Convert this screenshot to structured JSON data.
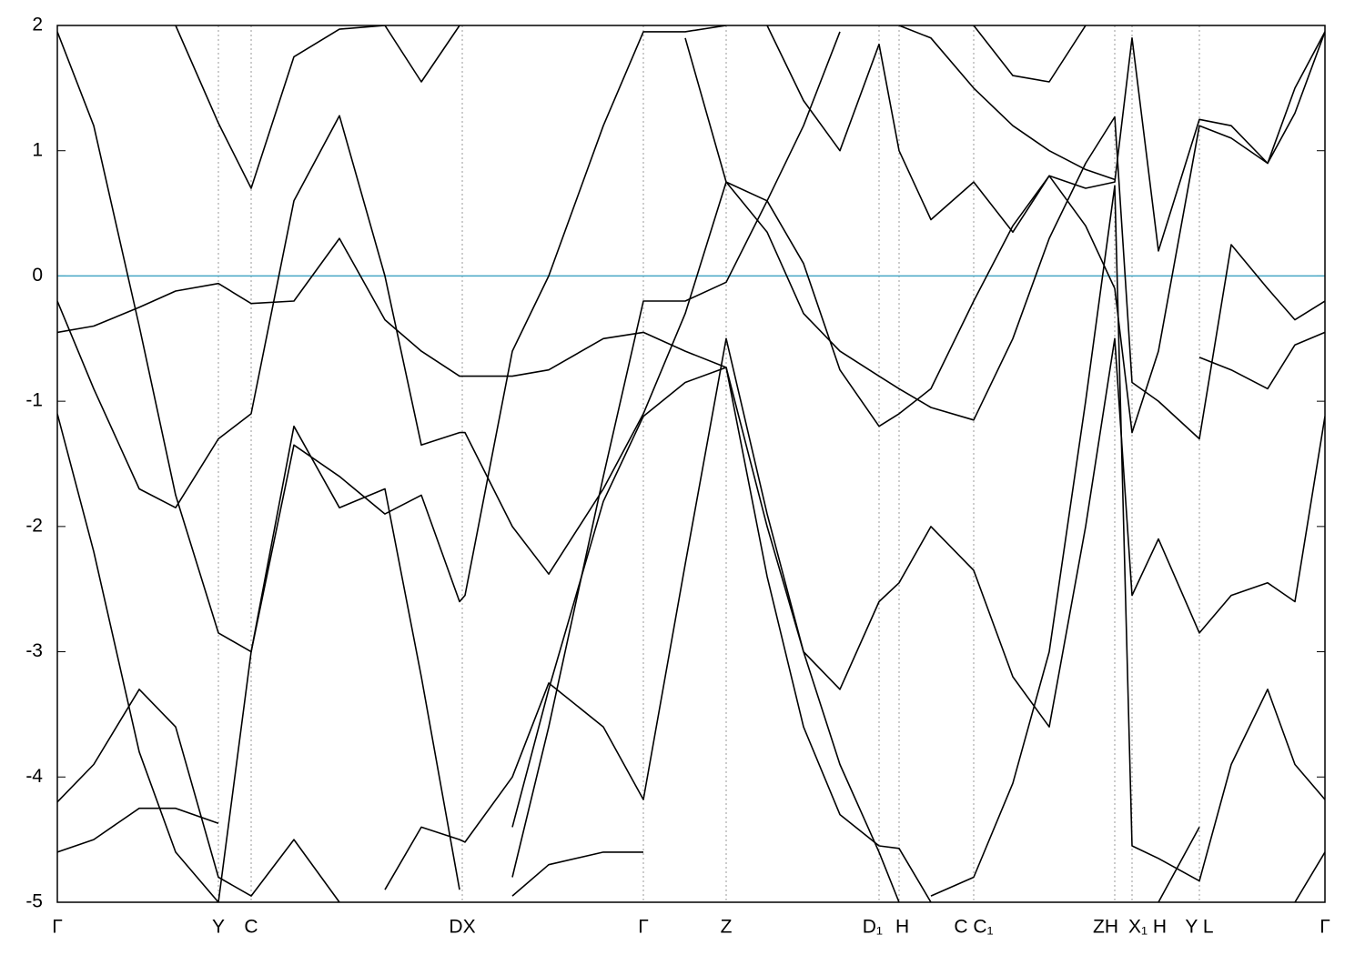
{
  "chart_data": {
    "type": "line",
    "x": [
      0,
      40,
      90,
      130,
      177,
      213,
      260,
      310,
      360,
      400,
      442,
      448,
      500,
      540,
      600,
      644,
      690,
      735,
      780,
      820,
      860,
      903,
      925,
      960,
      1007,
      1050,
      1090,
      1130,
      1162,
      1181,
      1210,
      1255,
      1290,
      1330,
      1360,
      1393
    ],
    "xlim": [
      0,
      1393
    ],
    "xticks": [
      {
        "value": 0,
        "label": "Γ"
      },
      {
        "value": 177,
        "label": "Y"
      },
      {
        "value": 213,
        "label": "C"
      },
      {
        "value": 445,
        "label": "DX"
      },
      {
        "value": 644,
        "label": "Γ"
      },
      {
        "value": 735,
        "label": "Z"
      },
      {
        "value": 903,
        "label": "D₁"
      },
      {
        "value": 925,
        "label": "H"
      },
      {
        "value": 1007,
        "label": "C C₁"
      },
      {
        "value": 1162,
        "label": "ZH"
      },
      {
        "value": 1181,
        "label": "X₁ H"
      },
      {
        "value": 1255,
        "label": "Y L"
      },
      {
        "value": 1393,
        "label": "Γ"
      }
    ],
    "ylim": [
      -5,
      2
    ],
    "yticks": [
      2,
      1,
      0,
      -1,
      -2,
      -3,
      -4,
      -5
    ],
    "reference_line": {
      "value": 0,
      "color": "#45a6c4"
    },
    "series": [
      {
        "color": "#000000",
        "values": [
          -4.6,
          -4.5,
          -4.25,
          -4.25,
          -4.37,
          null,
          null,
          null,
          -4.9,
          -4.4,
          -4.5,
          -4.52,
          -4.0,
          -3.25,
          -3.6,
          -4.18,
          -2.3,
          -0.5,
          -1.9,
          -3.0,
          -3.3,
          -2.6,
          -2.45,
          -2.0,
          -2.35,
          -3.2,
          -3.6,
          -2.0,
          -0.5,
          -2.55,
          -2.1,
          -2.85,
          -2.55,
          -2.45,
          -2.6,
          -1.12
        ]
      },
      {
        "color": "#000000",
        "values": [
          -4.2,
          -3.9,
          -3.3,
          -3.6,
          -4.8,
          -4.95,
          -4.5,
          -5.0,
          null,
          null,
          null,
          null,
          -4.95,
          -4.7,
          -4.6,
          -4.6,
          null,
          null,
          null,
          null,
          null,
          null,
          null,
          -4.95,
          -4.8,
          -4.05,
          -3.0,
          -1.0,
          0.72,
          -4.55,
          -4.65,
          -4.83,
          -3.9,
          -3.3,
          -3.9,
          -4.18
        ]
      },
      {
        "color": "#000000",
        "values": [
          -1.1,
          -2.2,
          -3.8,
          -4.6,
          -5.0,
          -3.0,
          -1.2,
          -1.85,
          -1.7,
          -3.2,
          -4.9,
          null,
          -4.4,
          -3.3,
          -1.8,
          -1.12,
          -0.85,
          -0.73,
          -2.4,
          -3.6,
          -4.3,
          -4.55,
          -4.57,
          -5.0,
          null,
          null,
          null,
          null,
          null,
          null,
          -5.0,
          -4.4,
          null,
          null,
          -5.0,
          -4.6
        ]
      },
      {
        "color": "#000000",
        "values": [
          -0.2,
          -0.9,
          -1.7,
          -1.85,
          -1.3,
          -1.1,
          0.6,
          1.28,
          0.0,
          -1.35,
          -1.25,
          -1.25,
          -2.0,
          -2.38,
          -1.7,
          -1.1,
          -0.3,
          0.75,
          0.6,
          0.1,
          -0.75,
          -1.2,
          -1.1,
          -0.9,
          -0.2,
          0.4,
          0.8,
          0.4,
          -0.1,
          -1.25,
          -0.6,
          1.2,
          1.1,
          0.9,
          1.3,
          1.95
        ]
      },
      {
        "color": "#000000",
        "values": [
          -0.45,
          -0.4,
          -0.25,
          -0.12,
          -0.06,
          -0.22,
          -0.2,
          0.3,
          -0.35,
          -0.6,
          -0.8,
          -0.8,
          -0.8,
          -0.75,
          -0.5,
          -0.45,
          -0.6,
          -0.73,
          -2.0,
          -3.0,
          -3.9,
          -4.6,
          -5.0,
          null,
          null,
          null,
          null,
          null,
          null,
          null,
          null,
          -0.65,
          -0.75,
          -0.9,
          -0.55,
          -0.45
        ]
      },
      {
        "color": "#000000",
        "values": [
          1.95,
          1.2,
          -0.4,
          -1.75,
          -2.85,
          -3.0,
          -1.35,
          -1.6,
          -1.9,
          -1.75,
          -2.6,
          -2.55,
          -0.6,
          0.0,
          1.2,
          1.95,
          1.95,
          2.0,
          null,
          null,
          null,
          null,
          null,
          null,
          null,
          null,
          null,
          null,
          null,
          null,
          null,
          null,
          null,
          null,
          null,
          null
        ]
      },
      {
        "color": "#000000",
        "values": [
          null,
          null,
          null,
          2.0,
          1.22,
          0.7,
          1.75,
          1.97,
          2.0,
          1.55,
          2.0,
          null,
          null,
          null,
          null,
          null,
          null,
          null,
          null,
          null,
          null,
          null,
          null,
          null,
          null,
          null,
          null,
          null,
          null,
          null,
          null,
          null,
          null,
          null,
          null,
          null
        ]
      },
      {
        "color": "#000000",
        "values": [
          null,
          null,
          null,
          null,
          null,
          null,
          null,
          null,
          null,
          null,
          null,
          null,
          -4.8,
          -3.6,
          -1.6,
          -0.2,
          -0.2,
          -0.05,
          0.6,
          1.2,
          1.95,
          null,
          null,
          null,
          null,
          null,
          null,
          null,
          null,
          null,
          null,
          null,
          null,
          null,
          null,
          null
        ]
      },
      {
        "color": "#000000",
        "values": [
          null,
          null,
          null,
          null,
          null,
          null,
          null,
          null,
          null,
          null,
          null,
          null,
          null,
          null,
          null,
          null,
          null,
          null,
          2.0,
          1.4,
          1.0,
          1.85,
          1.0,
          0.45,
          0.75,
          0.35,
          0.8,
          0.7,
          0.75,
          1.9,
          0.2,
          1.25,
          1.2,
          0.9,
          1.5,
          1.95
        ]
      },
      {
        "color": "#000000",
        "values": [
          null,
          null,
          null,
          null,
          null,
          null,
          null,
          null,
          null,
          null,
          null,
          null,
          null,
          null,
          null,
          null,
          1.9,
          0.75,
          0.35,
          -0.3,
          -0.6,
          -0.8,
          -0.9,
          -1.05,
          -1.15,
          -0.5,
          0.3,
          0.9,
          1.27,
          -0.85,
          -1.0,
          -1.3,
          0.25,
          -0.1,
          -0.35,
          -0.2
        ]
      },
      {
        "color": "#000000",
        "values": [
          null,
          null,
          null,
          null,
          null,
          null,
          null,
          null,
          null,
          null,
          null,
          null,
          null,
          null,
          null,
          null,
          null,
          null,
          null,
          null,
          null,
          null,
          null,
          null,
          2.0,
          1.6,
          1.55,
          2.0,
          null,
          null,
          null,
          null,
          null,
          null,
          null,
          null
        ]
      },
      {
        "color": "#000000",
        "values": [
          null,
          null,
          null,
          null,
          null,
          null,
          null,
          null,
          null,
          null,
          null,
          null,
          null,
          null,
          null,
          null,
          null,
          null,
          null,
          null,
          null,
          null,
          2.0,
          1.9,
          1.5,
          1.2,
          1.0,
          0.85,
          0.77,
          null,
          null,
          null,
          null,
          null,
          null,
          null
        ]
      }
    ]
  }
}
